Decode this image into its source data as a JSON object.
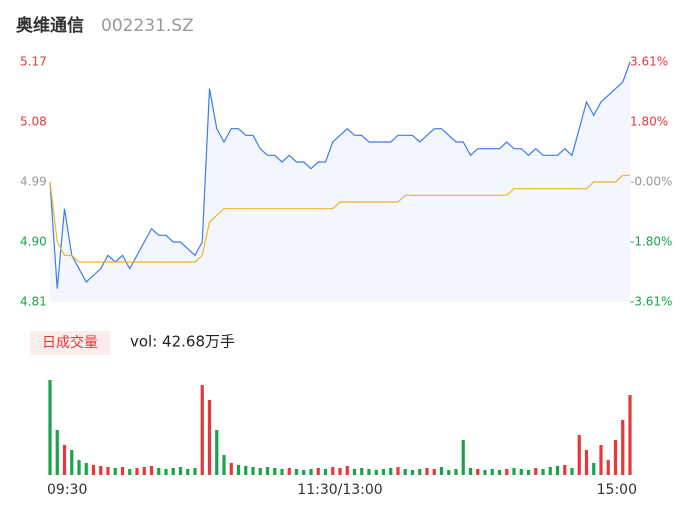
{
  "header": {
    "name": "奥维通信",
    "code": "002231.SZ"
  },
  "chart_data": [
    {
      "type": "line",
      "series": [
        {
          "color": "#3b7de9",
          "values": [
            4.99,
            4.83,
            4.95,
            4.88,
            4.86,
            4.84,
            4.85,
            4.86,
            4.88,
            4.87,
            4.88,
            4.86,
            4.88,
            4.9,
            4.92,
            4.91,
            4.91,
            4.9,
            4.9,
            4.89,
            4.88,
            4.9,
            5.13,
            5.07,
            5.05,
            5.07,
            5.07,
            5.06,
            5.06,
            5.04,
            5.03,
            5.03,
            5.02,
            5.03,
            5.02,
            5.02,
            5.01,
            5.02,
            5.02,
            5.05,
            5.06,
            5.07,
            5.06,
            5.06,
            5.05,
            5.05,
            5.05,
            5.05,
            5.06,
            5.06,
            5.06,
            5.05,
            5.06,
            5.07,
            5.07,
            5.06,
            5.05,
            5.05,
            5.03,
            5.04,
            5.04,
            5.04,
            5.04,
            5.05,
            5.04,
            5.04,
            5.03,
            5.04,
            5.03,
            5.03,
            5.03,
            5.04,
            5.03,
            5.07,
            5.11,
            5.09,
            5.11,
            5.12,
            5.13,
            5.14,
            5.17
          ]
        },
        {
          "color": "#f0b429",
          "values": [
            4.99,
            4.9,
            4.88,
            4.88,
            4.87,
            4.87,
            4.87,
            4.87,
            4.87,
            4.87,
            4.87,
            4.87,
            4.87,
            4.87,
            4.87,
            4.87,
            4.87,
            4.87,
            4.87,
            4.87,
            4.87,
            4.88,
            4.93,
            4.94,
            4.95,
            4.95,
            4.95,
            4.95,
            4.95,
            4.95,
            4.95,
            4.95,
            4.95,
            4.95,
            4.95,
            4.95,
            4.95,
            4.95,
            4.95,
            4.95,
            4.96,
            4.96,
            4.96,
            4.96,
            4.96,
            4.96,
            4.96,
            4.96,
            4.96,
            4.97,
            4.97,
            4.97,
            4.97,
            4.97,
            4.97,
            4.97,
            4.97,
            4.97,
            4.97,
            4.97,
            4.97,
            4.97,
            4.97,
            4.97,
            4.98,
            4.98,
            4.98,
            4.98,
            4.98,
            4.98,
            4.98,
            4.98,
            4.98,
            4.98,
            4.98,
            4.99,
            4.99,
            4.99,
            4.99,
            5.0,
            5.0
          ]
        }
      ],
      "area_color": "#f3f6fc",
      "ylim": [
        4.81,
        5.17
      ],
      "yticks": [
        5.17,
        5.08,
        4.99,
        {
          "value": 4.9,
          "label": "4.90"
        },
        4.81
      ],
      "y2lim": [
        -3.61,
        3.61
      ],
      "y2ticks": [
        {
          "value": 3.61,
          "label": "3.61%"
        },
        {
          "value": 1.8,
          "label": "1.80%"
        },
        {
          "value": 0,
          "label": "-0.00%"
        },
        {
          "value": -1.8,
          "label": "-1.80%"
        },
        {
          "value": -3.61,
          "label": "-3.61%"
        }
      ],
      "up_color": "#e8373b",
      "down_color": "#1aa34a",
      "flat_color": "#999999"
    },
    {
      "type": "bar",
      "title": "日成交量",
      "subtitle": "vol: 42.68万手",
      "values": [
        95,
        45,
        30,
        25,
        15,
        12,
        10,
        9,
        8,
        7,
        8,
        6,
        7,
        8,
        9,
        7,
        6,
        7,
        8,
        6,
        7,
        90,
        75,
        45,
        20,
        12,
        10,
        9,
        8,
        7,
        8,
        7,
        6,
        7,
        6,
        5,
        6,
        7,
        6,
        8,
        7,
        9,
        6,
        7,
        6,
        5,
        6,
        7,
        8,
        6,
        5,
        6,
        7,
        6,
        8,
        5,
        6,
        35,
        7,
        6,
        5,
        6,
        5,
        6,
        7,
        6,
        5,
        7,
        6,
        8,
        9,
        10,
        7,
        40,
        25,
        12,
        30,
        15,
        35,
        55,
        80
      ],
      "ylim": [
        0,
        100
      ],
      "x_labels": [
        "09:30",
        "11:30/13:00",
        "15:00"
      ]
    }
  ]
}
